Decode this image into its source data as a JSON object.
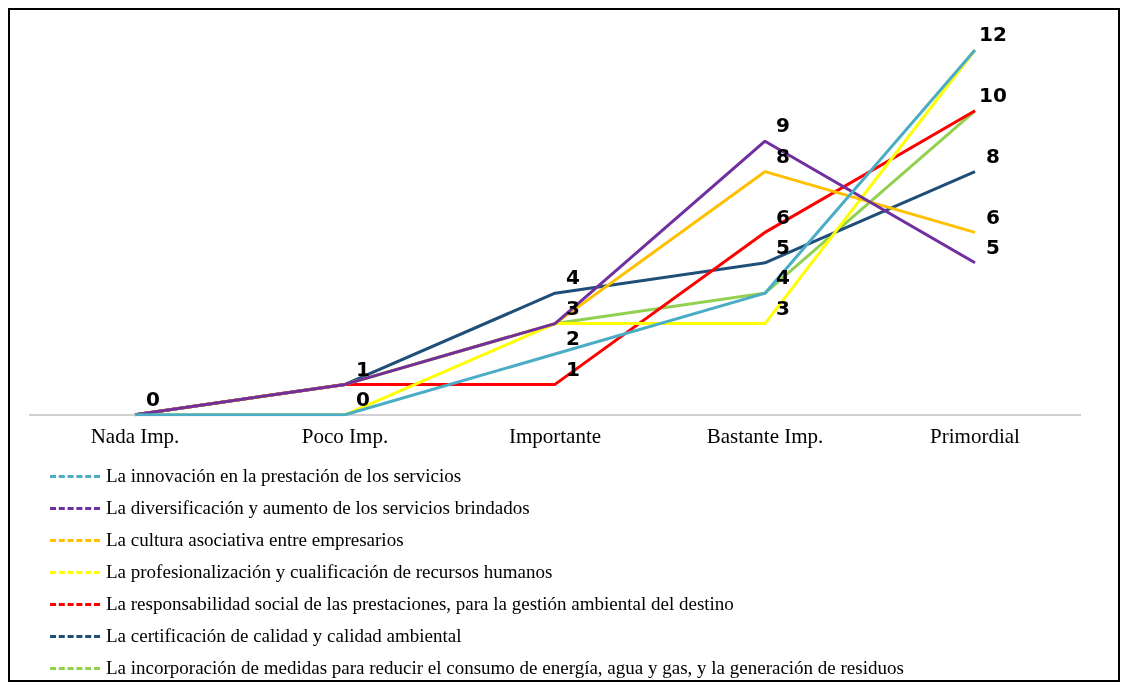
{
  "chart_data": {
    "type": "line",
    "categories": [
      "Nada Imp.",
      "Poco Imp.",
      "Importante",
      "Bastante Imp.",
      "Primordial"
    ],
    "series": [
      {
        "name": "La innovación en la prestación de los servicios",
        "color": "#4bacc6",
        "values": [
          0,
          0,
          2,
          4,
          12
        ],
        "value_labels": [
          null,
          null,
          "2",
          null,
          null
        ]
      },
      {
        "name": "La diversificación y aumento de los servicios brindados",
        "color": "#7030a0",
        "values": [
          0,
          1,
          3,
          9,
          5
        ],
        "value_labels": [
          null,
          null,
          null,
          "9",
          "5"
        ]
      },
      {
        "name": "La cultura asociativa entre empresarios",
        "color": "#ffc000",
        "values": [
          0,
          1,
          3,
          8,
          6
        ],
        "value_labels": [
          null,
          null,
          null,
          "8",
          "6"
        ]
      },
      {
        "name": "La profesionalización y cualificación de recursos humanos",
        "color": "#ffff00",
        "values": [
          0,
          0,
          3,
          3,
          12
        ],
        "value_labels": [
          null,
          "0",
          null,
          "3",
          "12"
        ]
      },
      {
        "name": "La responsabilidad social de las prestaciones, para la gestión ambiental del destino",
        "color": "#ff0000",
        "values": [
          0,
          1,
          1,
          6,
          10
        ],
        "value_labels": [
          null,
          null,
          "1",
          "6",
          "10"
        ]
      },
      {
        "name": "La certificación de calidad y calidad ambiental",
        "color": "#1f4e79",
        "values": [
          0,
          1,
          4,
          5,
          8
        ],
        "value_labels": [
          null,
          null,
          "4",
          "5",
          "8"
        ]
      },
      {
        "name": "La incorporación de medidas para reducir el consumo de energía, agua y gas, y la generación de residuos",
        "color": "#92d050",
        "values": [
          0,
          1,
          3,
          4,
          10
        ],
        "value_labels": [
          "0",
          "1",
          "3",
          "4",
          null
        ]
      }
    ],
    "legend": "bottom",
    "grid": false,
    "marker": "none",
    "line_style": "solid"
  }
}
